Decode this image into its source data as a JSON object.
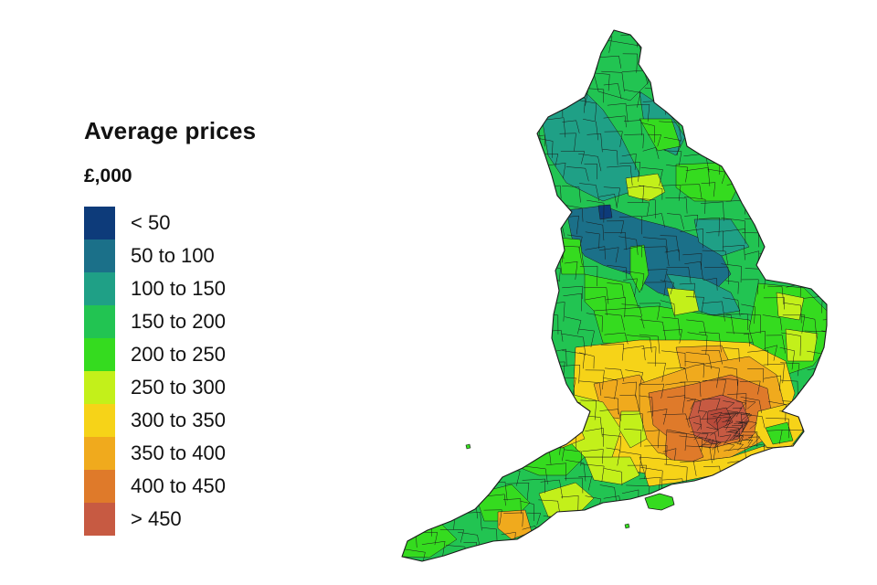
{
  "legend": {
    "title": "Average prices",
    "subtitle": "£,000",
    "items": [
      {
        "label": "< 50",
        "color": "#0d3b7a"
      },
      {
        "label": "50 to 100",
        "color": "#1b7089"
      },
      {
        "label": "100 to 150",
        "color": "#1fa086"
      },
      {
        "label": "150 to 200",
        "color": "#22c452"
      },
      {
        "label": "200 to 250",
        "color": "#35db1f"
      },
      {
        "label": "250 to 300",
        "color": "#c3f01a"
      },
      {
        "label": "300 to 350",
        "color": "#f6d318"
      },
      {
        "label": "350 to 400",
        "color": "#f0aa1d"
      },
      {
        "label": "400 to 450",
        "color": "#df7a2a"
      },
      {
        "label": "> 450",
        "color": "#c75a42"
      }
    ]
  },
  "map": {
    "region": "England",
    "border_color": "#1a1a1a"
  }
}
